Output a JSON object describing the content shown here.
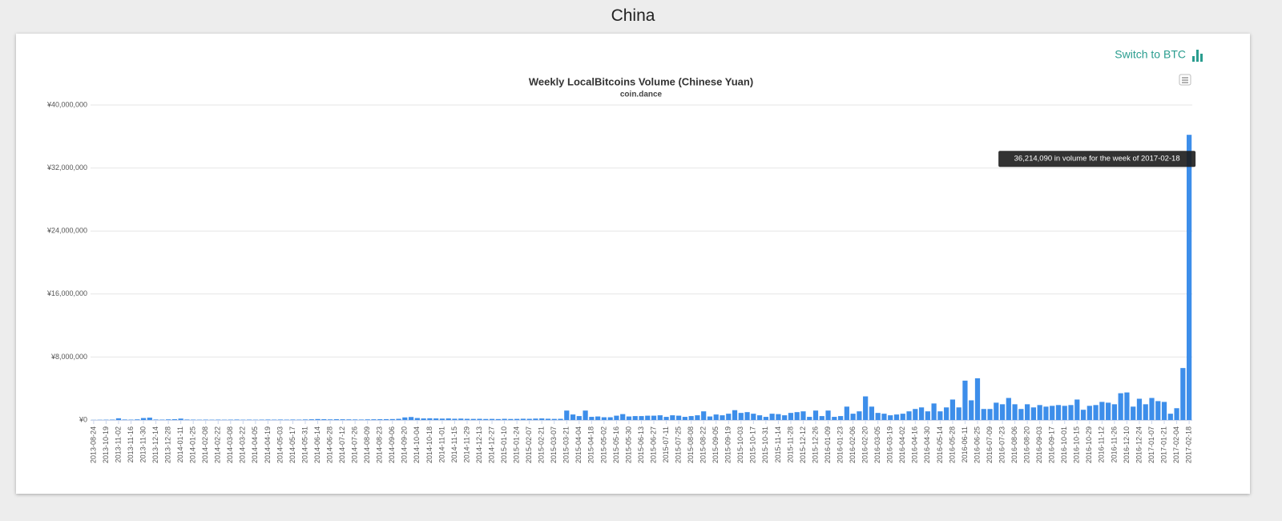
{
  "page_title": "China",
  "switch_link": "Switch to BTC",
  "chart_data": {
    "type": "bar",
    "title": "Weekly LocalBitcoins Volume (Chinese Yuan)",
    "subtitle": "coin.dance",
    "color": "#3d8eea",
    "grid": true,
    "ylim": [
      0,
      40000000
    ],
    "yticks": [
      {
        "value": 0,
        "label": "¥0"
      },
      {
        "value": 8000000,
        "label": "¥8,000,000"
      },
      {
        "value": 16000000,
        "label": "¥16,000,000"
      },
      {
        "value": 24000000,
        "label": "¥24,000,000"
      },
      {
        "value": 32000000,
        "label": "¥32,000,000"
      },
      {
        "value": 40000000,
        "label": "¥40,000,000"
      }
    ],
    "tooltip": "36,214,090 in volume for the week of 2017-02-18",
    "categories": [
      "2013-08-24",
      null,
      "2013-10-19",
      null,
      "2013-11-02",
      null,
      "2013-11-16",
      null,
      "2013-11-30",
      null,
      "2013-12-14",
      null,
      "2013-12-28",
      null,
      "2014-01-11",
      null,
      "2014-01-25",
      null,
      "2014-02-08",
      null,
      "2014-02-22",
      null,
      "2014-03-08",
      null,
      "2014-03-22",
      null,
      "2014-04-05",
      null,
      "2014-04-19",
      null,
      "2014-05-03",
      null,
      "2014-05-17",
      null,
      "2014-05-31",
      null,
      "2014-06-14",
      null,
      "2014-06-28",
      null,
      "2014-07-12",
      null,
      "2014-07-26",
      null,
      "2014-08-09",
      null,
      "2014-08-23",
      null,
      "2014-09-06",
      null,
      "2014-09-20",
      null,
      "2014-10-04",
      null,
      "2014-10-18",
      null,
      "2014-11-01",
      null,
      "2014-11-15",
      null,
      "2014-11-29",
      null,
      "2014-12-13",
      null,
      "2014-12-27",
      null,
      "2015-01-10",
      null,
      "2015-01-24",
      null,
      "2015-02-07",
      null,
      "2015-02-21",
      null,
      "2015-03-07",
      null,
      "2015-03-21",
      null,
      "2015-04-04",
      null,
      "2015-04-18",
      null,
      "2015-05-02",
      null,
      "2015-05-16",
      null,
      "2015-05-30",
      null,
      "2015-06-13",
      null,
      "2015-06-27",
      null,
      "2015-07-11",
      null,
      "2015-07-25",
      null,
      "2015-08-08",
      null,
      "2015-08-22",
      null,
      "2015-09-05",
      null,
      "2015-09-19",
      null,
      "2015-10-03",
      null,
      "2015-10-17",
      null,
      "2015-10-31",
      null,
      "2015-11-14",
      null,
      "2015-11-28",
      null,
      "2015-12-12",
      null,
      "2015-12-26",
      null,
      "2016-01-09",
      null,
      "2016-01-23",
      null,
      "2016-02-06",
      null,
      "2016-02-20",
      null,
      "2016-03-05",
      null,
      "2016-03-19",
      null,
      "2016-04-02",
      null,
      "2016-04-16",
      null,
      "2016-04-30",
      null,
      "2016-05-14",
      null,
      "2016-05-28",
      null,
      "2016-06-11",
      null,
      "2016-06-25",
      null,
      "2016-07-09",
      null,
      "2016-07-23",
      null,
      "2016-08-06",
      null,
      "2016-08-20",
      null,
      "2016-09-03",
      null,
      "2016-09-17",
      null,
      "2016-10-01",
      null,
      "2016-10-15",
      null,
      "2016-10-29",
      null,
      "2016-11-12",
      null,
      "2016-11-26",
      null,
      "2016-12-10",
      null,
      "2016-12-24",
      null,
      "2017-01-07",
      null,
      "2017-01-21",
      null,
      "2017-02-04",
      null,
      "2017-02-18"
    ],
    "values": [
      20000,
      30000,
      40000,
      50000,
      220000,
      60000,
      50000,
      80000,
      250000,
      300000,
      60000,
      50000,
      80000,
      100000,
      180000,
      60000,
      50000,
      40000,
      50000,
      40000,
      50000,
      40000,
      50000,
      60000,
      40000,
      50000,
      40000,
      50000,
      60000,
      50000,
      60000,
      50000,
      60000,
      50000,
      70000,
      90000,
      120000,
      100000,
      80000,
      100000,
      90000,
      80000,
      70000,
      60000,
      80000,
      90000,
      100000,
      110000,
      120000,
      150000,
      330000,
      380000,
      250000,
      200000,
      220000,
      200000,
      180000,
      200000,
      160000,
      180000,
      150000,
      140000,
      150000,
      130000,
      140000,
      120000,
      150000,
      130000,
      140000,
      160000,
      150000,
      180000,
      200000,
      160000,
      140000,
      150000,
      1200000,
      700000,
      500000,
      1200000,
      400000,
      450000,
      350000,
      350000,
      550000,
      750000,
      450000,
      500000,
      500000,
      550000,
      550000,
      600000,
      400000,
      600000,
      550000,
      400000,
      500000,
      600000,
      1100000,
      450000,
      700000,
      600000,
      800000,
      1250000,
      900000,
      1000000,
      800000,
      600000,
      400000,
      800000,
      750000,
      600000,
      900000,
      1000000,
      1100000,
      400000,
      1200000,
      500000,
      1200000,
      400000,
      500000,
      1700000,
      800000,
      1100000,
      3000000,
      1700000,
      900000,
      800000,
      600000,
      700000,
      800000,
      1100000,
      1400000,
      1600000,
      1100000,
      2100000,
      1100000,
      1600000,
      2600000,
      1600000,
      5000000,
      2500000,
      5300000,
      1400000,
      1400000,
      2200000,
      2000000,
      2800000,
      2000000,
      1400000,
      2000000,
      1600000,
      1900000,
      1700000,
      1800000,
      1900000,
      1800000,
      1900000,
      2600000,
      1300000,
      1800000,
      1900000,
      2300000,
      2200000,
      2000000,
      3400000,
      3500000,
      1700000,
      2700000,
      2000000,
      2800000,
      2400000,
      2300000,
      800000,
      1500000,
      6600000,
      36214090
    ]
  }
}
